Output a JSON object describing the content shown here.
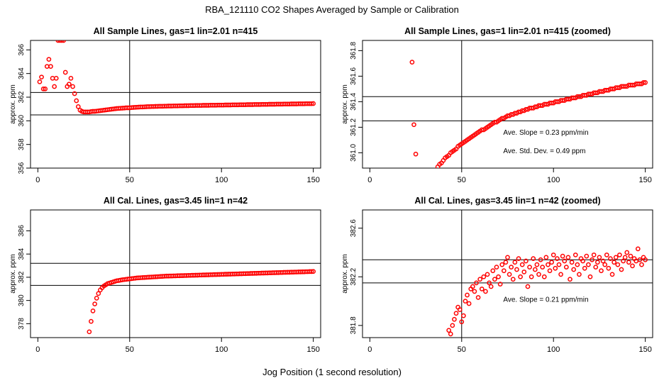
{
  "figure": {
    "title": "RBA_121110  CO2 Shapes Averaged by Sample or Calibration",
    "xlabel": "Jog Position (1 second resolution)"
  },
  "colors": {
    "points": "#ff0000",
    "axes": "#000000",
    "background": "#ffffff"
  },
  "chart_data": [
    {
      "id": "sample",
      "type": "scatter",
      "title": "All Sample Lines, gas=1 lin=2.01 n=415",
      "ylabel": "approx. ppm",
      "xlim": [
        -4,
        154
      ],
      "ylim": [
        356,
        366.8
      ],
      "xticks": [
        0,
        50,
        100,
        150
      ],
      "yticks": [
        356,
        358,
        360,
        362,
        364,
        366
      ],
      "vline": 50,
      "hlines": [
        360.5,
        362.4
      ],
      "annotations": [],
      "x": [
        1,
        2,
        3,
        4,
        5,
        6,
        7,
        8,
        9,
        10,
        11,
        12,
        13,
        14,
        15,
        16,
        17,
        18,
        19,
        20,
        21,
        22,
        23,
        24,
        25,
        26,
        27,
        28,
        29,
        30,
        31,
        32,
        33,
        34,
        35,
        36,
        37,
        38,
        39,
        40,
        41,
        42,
        43,
        44,
        45,
        46,
        47,
        48,
        49,
        50,
        51,
        52,
        53,
        54,
        55,
        56,
        57,
        58,
        59,
        60,
        61,
        62,
        63,
        64,
        65,
        66,
        67,
        68,
        69,
        70,
        71,
        72,
        73,
        74,
        75,
        76,
        77,
        78,
        79,
        80,
        81,
        82,
        83,
        84,
        85,
        86,
        87,
        88,
        89,
        90,
        91,
        92,
        93,
        94,
        95,
        96,
        97,
        98,
        99,
        100,
        101,
        102,
        103,
        104,
        105,
        106,
        107,
        108,
        109,
        110,
        111,
        112,
        113,
        114,
        115,
        116,
        117,
        118,
        119,
        120,
        121,
        122,
        123,
        124,
        125,
        126,
        127,
        128,
        129,
        130,
        131,
        132,
        133,
        134,
        135,
        136,
        137,
        138,
        139,
        140,
        141,
        142,
        143,
        144,
        145,
        146,
        147,
        148,
        149,
        150
      ],
      "y": [
        363.3,
        363.7,
        362.7,
        362.7,
        364.6,
        365.2,
        364.6,
        363.6,
        362.9,
        363.6,
        366.8,
        366.8,
        366.8,
        366.8,
        364.1,
        362.9,
        363.1,
        363.6,
        362.9,
        362.3,
        361.7,
        361.2,
        360.9,
        360.8,
        360.75,
        360.75,
        360.75,
        360.75,
        360.78,
        360.8,
        360.8,
        360.82,
        360.84,
        360.86,
        360.88,
        360.9,
        360.92,
        360.94,
        360.96,
        360.98,
        361.0,
        361.02,
        361.04,
        361.05,
        361.06,
        361.07,
        361.08,
        361.1,
        361.1,
        361.1,
        361.12,
        361.13,
        361.14,
        361.15,
        361.16,
        361.17,
        361.17,
        361.18,
        361.19,
        361.2,
        361.2,
        361.21,
        361.21,
        361.22,
        361.22,
        361.23,
        361.23,
        361.23,
        361.24,
        361.24,
        361.25,
        361.25,
        361.25,
        361.26,
        361.26,
        361.26,
        361.27,
        361.27,
        361.27,
        361.28,
        361.28,
        361.28,
        361.29,
        361.29,
        361.29,
        361.3,
        361.3,
        361.3,
        361.3,
        361.31,
        361.31,
        361.31,
        361.31,
        361.32,
        361.32,
        361.32,
        361.32,
        361.33,
        361.33,
        361.33,
        361.33,
        361.34,
        361.34,
        361.34,
        361.34,
        361.35,
        361.35,
        361.35,
        361.35,
        361.36,
        361.36,
        361.36,
        361.36,
        361.37,
        361.37,
        361.37,
        361.37,
        361.38,
        361.38,
        361.38,
        361.38,
        361.39,
        361.39,
        361.39,
        361.39,
        361.4,
        361.4,
        361.4,
        361.4,
        361.41,
        361.41,
        361.41,
        361.41,
        361.42,
        361.42,
        361.42,
        361.42,
        361.43,
        361.43,
        361.43,
        361.43,
        361.44,
        361.44,
        361.44,
        361.44,
        361.45,
        361.45,
        361.45,
        361.45,
        361.46
      ]
    },
    {
      "id": "sample-zoom",
      "type": "scatter",
      "title": "All Sample Lines, gas=1 lin=2.01 n=415 (zoomed)",
      "ylabel": "approx. ppm",
      "xlim": [
        -4,
        154
      ],
      "ylim": [
        360.88,
        361.88
      ],
      "xticks": [
        0,
        50,
        100,
        150
      ],
      "yticks": [
        361.0,
        361.2,
        361.4,
        361.6,
        361.8
      ],
      "ytick_labels": [
        "361.0",
        "361.2",
        "361.4",
        "361.6",
        "361.8"
      ],
      "vline": 50,
      "hlines": [
        361.25,
        361.44
      ],
      "annotations": [
        "Ave. Slope =  0.23  ppm/min",
        "Ave. Std. Dev. =  0.49  ppm"
      ],
      "x": [
        23,
        24,
        25,
        37,
        38,
        39,
        40,
        41,
        42,
        43,
        44,
        45,
        46,
        47,
        48,
        49,
        50,
        51,
        52,
        53,
        54,
        55,
        56,
        57,
        58,
        59,
        60,
        61,
        62,
        63,
        64,
        65,
        66,
        67,
        68,
        69,
        70,
        71,
        72,
        73,
        74,
        75,
        76,
        77,
        78,
        79,
        80,
        81,
        82,
        83,
        84,
        85,
        86,
        87,
        88,
        89,
        90,
        91,
        92,
        93,
        94,
        95,
        96,
        97,
        98,
        99,
        100,
        101,
        102,
        103,
        104,
        105,
        106,
        107,
        108,
        109,
        110,
        111,
        112,
        113,
        114,
        115,
        116,
        117,
        118,
        119,
        120,
        121,
        122,
        123,
        124,
        125,
        126,
        127,
        128,
        129,
        130,
        131,
        132,
        133,
        134,
        135,
        136,
        137,
        138,
        139,
        140,
        141,
        142,
        143,
        144,
        145,
        146,
        147,
        148,
        149,
        150
      ],
      "y": [
        361.71,
        361.22,
        360.99,
        360.89,
        360.91,
        360.92,
        360.94,
        360.96,
        360.97,
        360.98,
        361.0,
        361.01,
        361.02,
        361.03,
        361.05,
        361.06,
        361.07,
        361.08,
        361.09,
        361.1,
        361.11,
        361.12,
        361.13,
        361.14,
        361.15,
        361.16,
        361.17,
        361.18,
        361.18,
        361.19,
        361.2,
        361.21,
        361.22,
        361.23,
        361.24,
        361.24,
        361.25,
        361.26,
        361.27,
        361.27,
        361.28,
        361.29,
        361.29,
        361.3,
        361.3,
        361.31,
        361.31,
        361.32,
        361.32,
        361.33,
        361.33,
        361.34,
        361.34,
        361.35,
        361.35,
        361.35,
        361.36,
        361.36,
        361.37,
        361.37,
        361.37,
        361.38,
        361.38,
        361.38,
        361.39,
        361.39,
        361.39,
        361.4,
        361.4,
        361.4,
        361.41,
        361.41,
        361.41,
        361.42,
        361.42,
        361.42,
        361.43,
        361.43,
        361.43,
        361.44,
        361.44,
        361.44,
        361.45,
        361.45,
        361.45,
        361.46,
        361.46,
        361.46,
        361.47,
        361.47,
        361.47,
        361.48,
        361.48,
        361.48,
        361.49,
        361.49,
        361.49,
        361.5,
        361.5,
        361.5,
        361.51,
        361.51,
        361.51,
        361.52,
        361.52,
        361.52,
        361.52,
        361.53,
        361.53,
        361.53,
        361.53,
        361.54,
        361.54,
        361.54,
        361.54,
        361.55,
        361.55
      ]
    },
    {
      "id": "cal",
      "type": "scatter",
      "title": "All Cal. Lines, gas=3.45 lin=1 n=42",
      "ylabel": "approx. ppm",
      "xlim": [
        -4,
        154
      ],
      "ylim": [
        376.8,
        387.8
      ],
      "xticks": [
        0,
        50,
        100,
        150
      ],
      "yticks": [
        378,
        380,
        382,
        384,
        386
      ],
      "vline": 50,
      "hlines": [
        381.3,
        383.2
      ],
      "annotations": [],
      "x": [
        28,
        29,
        30,
        31,
        32,
        33,
        34,
        35,
        36,
        37,
        38,
        39,
        40,
        41,
        42,
        43,
        44,
        45,
        46,
        47,
        48,
        49,
        50,
        51,
        52,
        53,
        54,
        55,
        56,
        57,
        58,
        59,
        60,
        61,
        62,
        63,
        64,
        65,
        66,
        67,
        68,
        69,
        70,
        71,
        72,
        73,
        74,
        75,
        76,
        77,
        78,
        79,
        80,
        81,
        82,
        83,
        84,
        85,
        86,
        87,
        88,
        89,
        90,
        91,
        92,
        93,
        94,
        95,
        96,
        97,
        98,
        99,
        100,
        101,
        102,
        103,
        104,
        105,
        106,
        107,
        108,
        109,
        110,
        111,
        112,
        113,
        114,
        115,
        116,
        117,
        118,
        119,
        120,
        121,
        122,
        123,
        124,
        125,
        126,
        127,
        128,
        129,
        130,
        131,
        132,
        133,
        134,
        135,
        136,
        137,
        138,
        139,
        140,
        141,
        142,
        143,
        144,
        145,
        146,
        147,
        148,
        149,
        150
      ],
      "y": [
        377.3,
        378.2,
        379.1,
        379.7,
        380.2,
        380.6,
        380.9,
        381.1,
        381.25,
        381.35,
        381.45,
        381.5,
        381.55,
        381.6,
        381.65,
        381.7,
        381.72,
        381.75,
        381.78,
        381.8,
        381.82,
        381.84,
        381.86,
        381.88,
        381.9,
        381.92,
        381.94,
        381.95,
        381.96,
        381.97,
        381.98,
        381.99,
        382.0,
        382.01,
        382.02,
        382.03,
        382.04,
        382.05,
        382.06,
        382.07,
        382.08,
        382.09,
        382.1,
        382.1,
        382.11,
        382.11,
        382.12,
        382.12,
        382.13,
        382.13,
        382.14,
        382.14,
        382.15,
        382.15,
        382.16,
        382.16,
        382.17,
        382.17,
        382.18,
        382.18,
        382.19,
        382.19,
        382.2,
        382.2,
        382.21,
        382.21,
        382.22,
        382.22,
        382.23,
        382.23,
        382.24,
        382.24,
        382.25,
        382.25,
        382.26,
        382.26,
        382.27,
        382.27,
        382.28,
        382.28,
        382.29,
        382.29,
        382.3,
        382.3,
        382.31,
        382.31,
        382.32,
        382.32,
        382.33,
        382.33,
        382.34,
        382.34,
        382.35,
        382.35,
        382.36,
        382.36,
        382.37,
        382.37,
        382.38,
        382.38,
        382.39,
        382.39,
        382.4,
        382.4,
        382.41,
        382.41,
        382.42,
        382.42,
        382.43,
        382.43,
        382.44,
        382.44,
        382.45,
        382.45,
        382.46,
        382.46,
        382.47,
        382.47,
        382.48,
        382.48,
        382.49,
        382.49,
        382.5
      ]
    },
    {
      "id": "cal-zoom",
      "type": "scatter",
      "title": "All Cal. Lines, gas=3.45 lin=1 n=42 (zoomed)",
      "ylabel": "approx. ppm",
      "xlim": [
        -4,
        154
      ],
      "ylim": [
        381.7,
        382.75
      ],
      "xticks": [
        0,
        50,
        100,
        150
      ],
      "yticks": [
        381.8,
        382.2,
        382.6
      ],
      "ytick_labels": [
        "381.8",
        "382.2",
        "382.6"
      ],
      "vline": 50,
      "hlines": [
        382.15,
        382.34
      ],
      "annotations": [
        "Ave. Slope =  0.21  ppm/min"
      ],
      "x": [
        43,
        44,
        45,
        46,
        47,
        48,
        49,
        50,
        51,
        52,
        53,
        54,
        55,
        56,
        57,
        58,
        59,
        60,
        61,
        62,
        63,
        64,
        65,
        66,
        67,
        68,
        69,
        70,
        71,
        72,
        73,
        74,
        75,
        76,
        77,
        78,
        79,
        80,
        81,
        82,
        83,
        84,
        85,
        86,
        87,
        88,
        89,
        90,
        91,
        92,
        93,
        94,
        95,
        96,
        97,
        98,
        99,
        100,
        101,
        102,
        103,
        104,
        105,
        106,
        107,
        108,
        109,
        110,
        111,
        112,
        113,
        114,
        115,
        116,
        117,
        118,
        119,
        120,
        121,
        122,
        123,
        124,
        125,
        126,
        127,
        128,
        129,
        130,
        131,
        132,
        133,
        134,
        135,
        136,
        137,
        138,
        139,
        140,
        141,
        142,
        143,
        144,
        145,
        146,
        147,
        148,
        149,
        150
      ],
      "y": [
        381.76,
        381.73,
        381.8,
        381.85,
        381.9,
        381.95,
        381.93,
        381.83,
        381.88,
        382.0,
        382.05,
        381.98,
        382.1,
        382.12,
        382.08,
        382.15,
        382.03,
        382.18,
        382.1,
        382.2,
        382.08,
        382.22,
        382.15,
        382.12,
        382.25,
        382.18,
        382.28,
        382.2,
        382.14,
        382.3,
        382.25,
        382.32,
        382.36,
        382.22,
        382.28,
        382.18,
        382.32,
        382.26,
        382.35,
        382.2,
        382.3,
        382.24,
        382.33,
        382.12,
        382.28,
        382.2,
        382.35,
        382.26,
        382.3,
        382.22,
        382.34,
        382.28,
        382.2,
        382.36,
        382.3,
        382.25,
        382.32,
        382.38,
        382.27,
        382.35,
        382.3,
        382.22,
        382.37,
        382.33,
        382.28,
        382.36,
        382.18,
        382.32,
        382.26,
        382.38,
        382.3,
        382.22,
        382.35,
        382.33,
        382.27,
        382.37,
        382.3,
        382.2,
        382.34,
        382.38,
        382.28,
        382.32,
        382.36,
        382.25,
        382.33,
        382.3,
        382.38,
        382.27,
        382.35,
        382.22,
        382.32,
        382.36,
        382.3,
        382.38,
        382.26,
        382.33,
        382.36,
        382.4,
        382.32,
        382.37,
        382.29,
        382.35,
        382.33,
        382.43,
        382.34,
        382.3,
        382.36,
        382.34
      ]
    }
  ]
}
